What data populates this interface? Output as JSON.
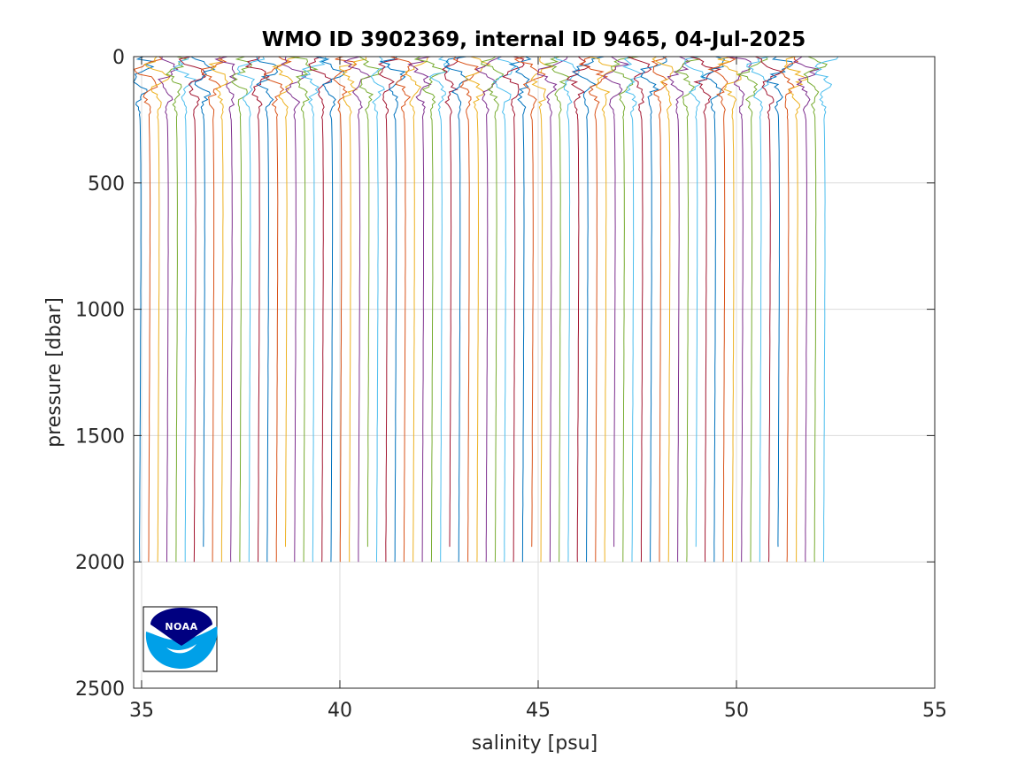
{
  "chart_data": {
    "type": "line",
    "title": "WMO ID 3902369, internal ID 9465, 04-Jul-2025",
    "xlabel": "salinity [psu]",
    "ylabel": "pressure [dbar]",
    "xlim": [
      34.8,
      55
    ],
    "ylim": [
      0,
      2500
    ],
    "y_reversed": true,
    "grid": true,
    "legend": "none",
    "xticks": [
      "35",
      "40",
      "45",
      "50",
      "55"
    ],
    "yticks": [
      "0",
      "500",
      "1000",
      "1500",
      "2000",
      "2500"
    ],
    "profile_count": 76,
    "profile_offset_start": 0,
    "profile_offset_step": 0.23,
    "profile_max_pressure": 2000,
    "profile_base_salinity": 35.0,
    "colors": [
      "#0072BD",
      "#D95319",
      "#EDB120",
      "#7E2F8E",
      "#77AC30",
      "#4DBEEE",
      "#A2142F"
    ]
  },
  "logo": {
    "name": "NOAA",
    "text": "NOAA",
    "colors": {
      "navy": "#000080",
      "blue": "#00A0E8",
      "white": "#ffffff"
    }
  }
}
